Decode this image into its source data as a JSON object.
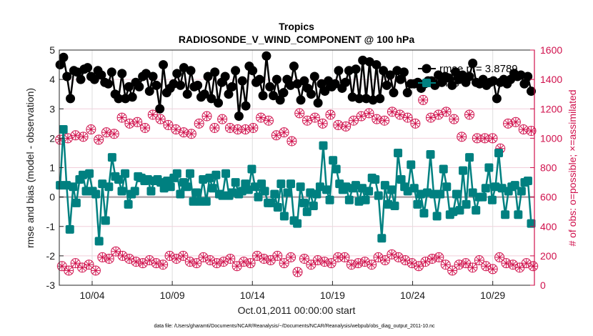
{
  "chart_data": {
    "type": "line",
    "title": "Tropics",
    "subtitle": "RADIOSONDE_V_WIND_COMPONENT @ 100 hPa",
    "xlabel": "Oct.01,2011 00:00:00 start",
    "ylabel": "rmse and bias (model - observation)",
    "ylabel_right": "# of obs: o=possible; ×=assimilated",
    "ylim": [
      -3,
      5
    ],
    "ylim_right": [
      0,
      1600
    ],
    "xlim_days": [
      0.95,
      30.6
    ],
    "yticks": [
      "-3",
      "-2",
      "-1",
      "0",
      "1",
      "2",
      "3",
      "4",
      "5"
    ],
    "yticks_right": [
      "0",
      "200",
      "400",
      "600",
      "800",
      "1000",
      "1200",
      "1400",
      "1600"
    ],
    "xticks": [
      {
        "day": 3,
        "label": "10/04"
      },
      {
        "day": 8,
        "label": "10/09"
      },
      {
        "day": 13,
        "label": "10/14"
      },
      {
        "day": 18,
        "label": "10/19"
      },
      {
        "day": 23,
        "label": "10/24"
      },
      {
        "day": 28,
        "label": "10/29"
      }
    ],
    "grid": true,
    "legend_position": "top-right",
    "legend": [
      {
        "label": "rmse pr= 3.8789",
        "series": "rmse"
      },
      {
        "label": "bias",
        "series": "bias"
      }
    ],
    "x_start_day": 1.0,
    "x_step_day": 0.25,
    "series": [
      {
        "name": "rmse",
        "color": "#000000",
        "marker": "circle",
        "values": [
          4.5,
          4.75,
          4.1,
          3.35,
          4.3,
          4.25,
          4.0,
          4.35,
          4.4,
          4.1,
          4.0,
          4.3,
          4.15,
          3.9,
          3.85,
          4.25,
          3.5,
          3.35,
          4.2,
          3.35,
          3.75,
          3.4,
          3.9,
          3.75,
          4.1,
          4.2,
          3.6,
          4.1,
          3.8,
          3.0,
          4.5,
          3.55,
          3.7,
          3.85,
          4.2,
          3.8,
          4.4,
          3.5,
          4.3,
          3.75,
          3.8,
          3.4,
          3.5,
          4.1,
          3.35,
          4.25,
          3.2,
          3.9,
          4.1,
          3.5,
          3.75,
          4.3,
          2.75,
          3.95,
          3.1,
          4.45,
          4.3,
          3.9,
          4.0,
          3.45,
          4.8,
          3.75,
          3.45,
          4.0,
          3.3,
          3.55,
          4.0,
          3.8,
          4.45,
          3.85,
          3.3,
          3.95,
          3.7,
          3.5,
          4.1,
          3.2,
          3.85,
          3.6,
          3.95,
          3.75,
          3.85,
          4.3,
          3.7,
          3.9,
          4.3,
          3.4,
          4.35,
          3.35,
          4.65,
          3.35,
          4.6,
          3.3,
          4.5,
          3.35,
          4.3,
          3.8,
          4.15,
          3.55,
          4.3,
          4.0,
          4.25,
          3.55,
          3.85,
          3.85,
          3.9,
          3.7,
          3.85,
          3.95,
          3.95,
          3.8,
          4.15,
          3.9,
          4.1,
          4.05,
          3.8,
          4.25,
          4.0,
          4.15,
          3.9,
          4.1,
          4.55,
          3.9,
          3.85,
          4.0,
          3.8,
          3.9,
          3.95,
          3.35,
          3.9,
          4.0,
          3.85,
          4.0,
          4.2,
          4.1,
          4.15,
          3.85,
          4.1,
          3.6
        ]
      },
      {
        "name": "bias",
        "color": "#008080",
        "marker": "square",
        "values": [
          0.4,
          2.3,
          0.4,
          -1.1,
          0.35,
          -0.2,
          0.6,
          0.75,
          0.2,
          0.8,
          0.2,
          0.1,
          -1.5,
          0.45,
          -0.8,
          0.35,
          1.35,
          0.7,
          0.6,
          0.2,
          0.8,
          -0.25,
          0.1,
          0.2,
          0.7,
          0.65,
          0.55,
          0.6,
          0.2,
          0.55,
          0.6,
          0.5,
          0.3,
          0.55,
          0.35,
          0.65,
          0.8,
          0.1,
          0.5,
          0.35,
          0.8,
          -0.15,
          0.15,
          -0.15,
          0.6,
          -0.15,
          0.65,
          0.3,
          0.75,
          0.1,
          0.05,
          0.8,
          0.05,
          0.15,
          0.5,
          0.1,
          0.2,
          0.45,
          0.25,
          0.95,
          0.35,
          0.0,
          0.45,
          0.2,
          -0.2,
          -0.2,
          0.1,
          -0.35,
          0.45,
          -0.65,
          0.15,
          0.45,
          -0.8,
          -0.9,
          0.35,
          -0.2,
          -0.5,
          0.15,
          -0.3,
          0.1,
          0.35,
          1.75,
          0.25,
          -0.1,
          1.25,
          0.95,
          0.45,
          0.25,
          0.35,
          -0.1,
          0.3,
          0.4,
          -0.15,
          0.3,
          -0.1,
          0.2,
          0.65,
          0.6,
          0.05,
          -1.4,
          0.4,
          -0.25,
          0.25,
          -0.3,
          1.5,
          0.6,
          0.35,
          0.2,
          1.1,
          0.3,
          -0.25,
          0.1,
          -0.55,
          0.15,
          1.45,
          0.1,
          -0.65,
          0.1,
          0.95,
          0.35,
          -0.6,
          -0.5,
          0.1,
          -0.45,
          0.9,
          -0.25,
          1.35,
          0.15,
          -0.45,
          0.0,
          0.0,
          0.3,
          1.0,
          -0.1,
          0.35,
          1.5,
          0.3,
          -0.6,
          0.2,
          0.35,
          0.4,
          -0.6,
          0.2,
          0.5,
          0.55,
          -0.9
        ]
      },
      {
        "name": "obs_possible_high",
        "axis": "right",
        "color": "#d0104c",
        "marker": "circle",
        "x_start_day": 1.0,
        "x_step_day": 0.5,
        "values": [
          990,
          1000,
          1020,
          1010,
          1060,
          990,
          1040,
          1030,
          1140,
          1100,
          1110,
          1070,
          1160,
          1130,
          1090,
          1060,
          1040,
          1030,
          1100,
          1150,
          1070,
          1130,
          1070,
          1060,
          1060,
          1070,
          1140,
          1120,
          1020,
          1040,
          980,
          1170,
          1120,
          1140,
          1100,
          1160,
          1090,
          1080,
          1120,
          1150,
          1170,
          1130,
          1120,
          1180,
          1160,
          1140,
          1100,
          1260,
          1140,
          1160,
          1180,
          1130,
          1010,
          1160,
          1000,
          1000,
          1000,
          930,
          1100,
          1110,
          1060,
          1050
        ]
      },
      {
        "name": "obs_possible_low",
        "axis": "right",
        "color": "#d0104c",
        "marker": "circle",
        "x_start_day": 1.25,
        "x_step_day": 0.5,
        "values": [
          130,
          100,
          150,
          120,
          140,
          100,
          190,
          180,
          230,
          200,
          180,
          160,
          150,
          170,
          150,
          140,
          200,
          180,
          200,
          160,
          150,
          190,
          170,
          150,
          160,
          180,
          130,
          160,
          150,
          200,
          180,
          170,
          200,
          150,
          190,
          90,
          180,
          140,
          170,
          160,
          150,
          190,
          190,
          140,
          150,
          160,
          140,
          190,
          170,
          210,
          190,
          170,
          150,
          130,
          160,
          180,
          190,
          140,
          100,
          140,
          150,
          120,
          170,
          130,
          110,
          190,
          150,
          140,
          120,
          150,
          130
        ]
      }
    ]
  },
  "footer": {
    "data_file": "data file: /Users/gharamti/Documents/NCAR/Reanalysis/~/Documents/NCAR/Reanalysis/webpub/obs_diag_output_2011-10.nc"
  },
  "colors": {
    "rmse": "#000000",
    "bias": "#008080",
    "obs": "#d0104c",
    "zero_line": "#b3a8ad",
    "grid_pink": "#f2cfdb",
    "grid_grey": "#dedede"
  }
}
